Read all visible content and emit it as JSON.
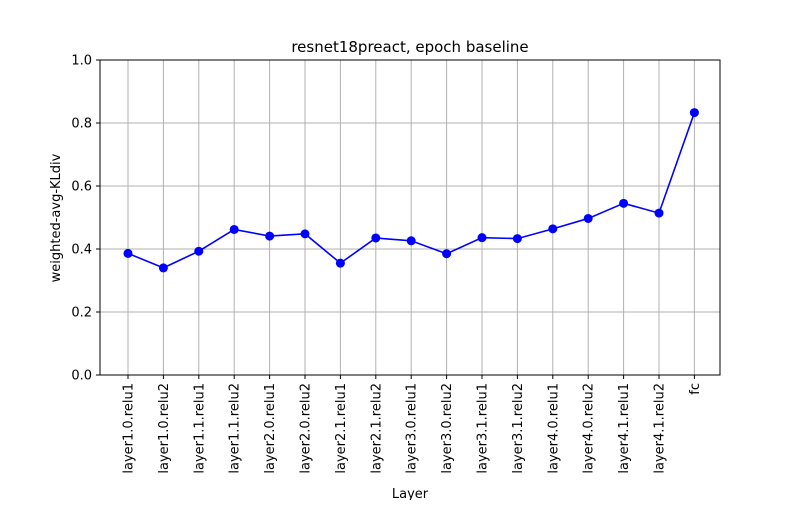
{
  "chart_data": {
    "type": "line",
    "title": "resnet18preact, epoch baseline",
    "xlabel": "Layer",
    "ylabel": "weighted-avg-KLdiv",
    "ylim": [
      0.0,
      1.0
    ],
    "y_ticks": [
      "0.0",
      "0.2",
      "0.4",
      "0.6",
      "0.8",
      "1.0"
    ],
    "grid": true,
    "categories": [
      "layer1.0.relu1",
      "layer1.0.relu2",
      "layer1.1.relu1",
      "layer1.1.relu2",
      "layer2.0.relu1",
      "layer2.0.relu2",
      "layer2.1.relu1",
      "layer2.1.relu2",
      "layer3.0.relu1",
      "layer3.0.relu2",
      "layer3.1.relu1",
      "layer3.1.relu2",
      "layer4.0.relu1",
      "layer4.0.relu2",
      "layer4.1.relu1",
      "layer4.1.relu2",
      "fc"
    ],
    "series": [
      {
        "values": [
          0.386,
          0.34,
          0.393,
          0.462,
          0.441,
          0.448,
          0.355,
          0.435,
          0.426,
          0.385,
          0.436,
          0.433,
          0.464,
          0.497,
          0.545,
          0.514,
          0.833
        ]
      }
    ],
    "line_color": "#0000ff",
    "grid_color": "#b0b0b0"
  }
}
